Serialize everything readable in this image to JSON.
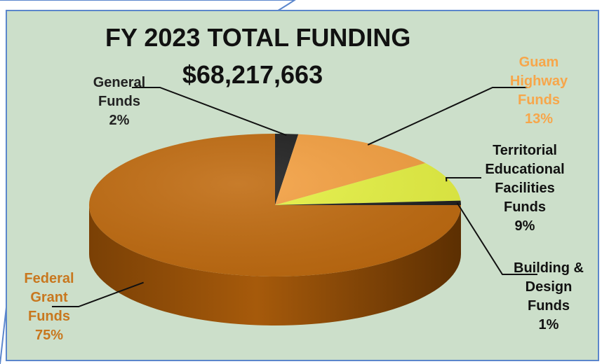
{
  "chart_data": {
    "type": "pie",
    "title": "FY 2023 TOTAL FUNDING",
    "subtitle": "$68,217,663",
    "slices": [
      {
        "name": "General Funds",
        "lines": [
          "General",
          "Funds"
        ],
        "pct_label": "2%",
        "value": 2,
        "color": "#1e1e1e",
        "label_color": "#222222"
      },
      {
        "name": "Guam Highway Funds",
        "lines": [
          "Guam",
          "Highway",
          "Funds"
        ],
        "pct_label": "13%",
        "value": 13,
        "color": "#f5a040",
        "label_color": "#f7a64a"
      },
      {
        "name": "Territorial Educational Facilities Funds",
        "lines": [
          "Territorial",
          "Educational",
          "Facilities",
          "Funds"
        ],
        "pct_label": "9%",
        "value": 9,
        "color": "#e6f241",
        "label_color": "#111111"
      },
      {
        "name": "Building & Design Funds",
        "lines": [
          "Building &",
          "Design",
          "Funds"
        ],
        "pct_label": "1%",
        "value": 1,
        "color": "#1e1e1e",
        "label_color": "#111111"
      },
      {
        "name": "Federal Grant Funds",
        "lines": [
          "Federal",
          "Grant",
          "Funds"
        ],
        "pct_label": "75%",
        "value": 75,
        "color": "#c06a0e",
        "label_color": "#c8771e"
      }
    ]
  }
}
